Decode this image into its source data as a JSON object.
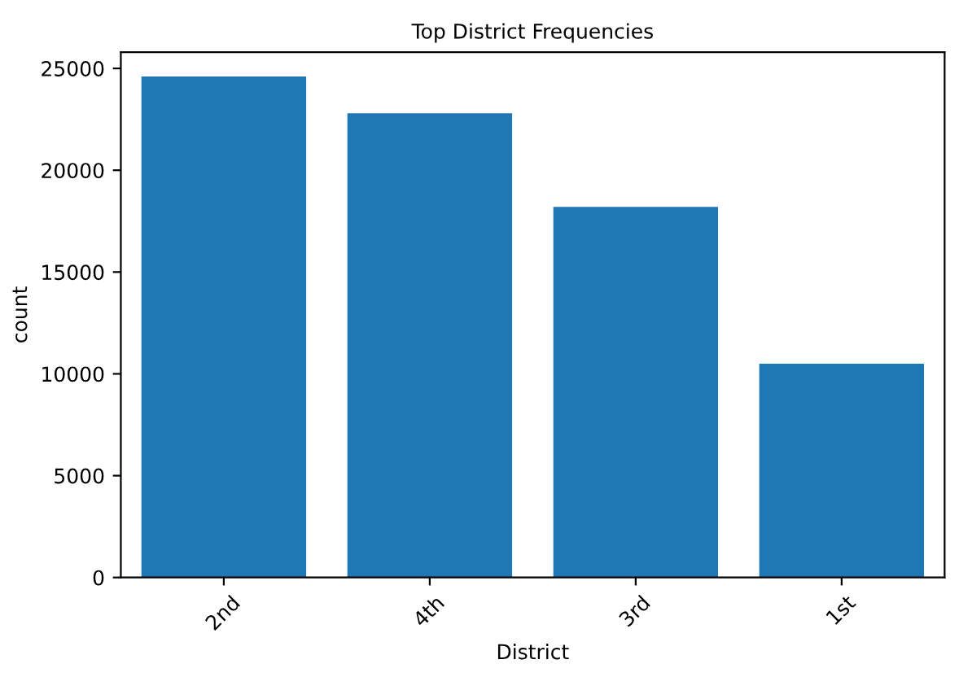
{
  "chart_data": {
    "type": "bar",
    "title": "Top District Frequencies",
    "xlabel": "District",
    "ylabel": "count",
    "categories": [
      "2nd",
      "4th",
      "3rd",
      "1st"
    ],
    "values": [
      24600,
      22800,
      18200,
      10500
    ],
    "color": "#1f77b4",
    "ylim": [
      0,
      25800
    ],
    "yticks": [
      0,
      5000,
      10000,
      15000,
      20000,
      25000
    ],
    "grid": false,
    "legend": false
  }
}
